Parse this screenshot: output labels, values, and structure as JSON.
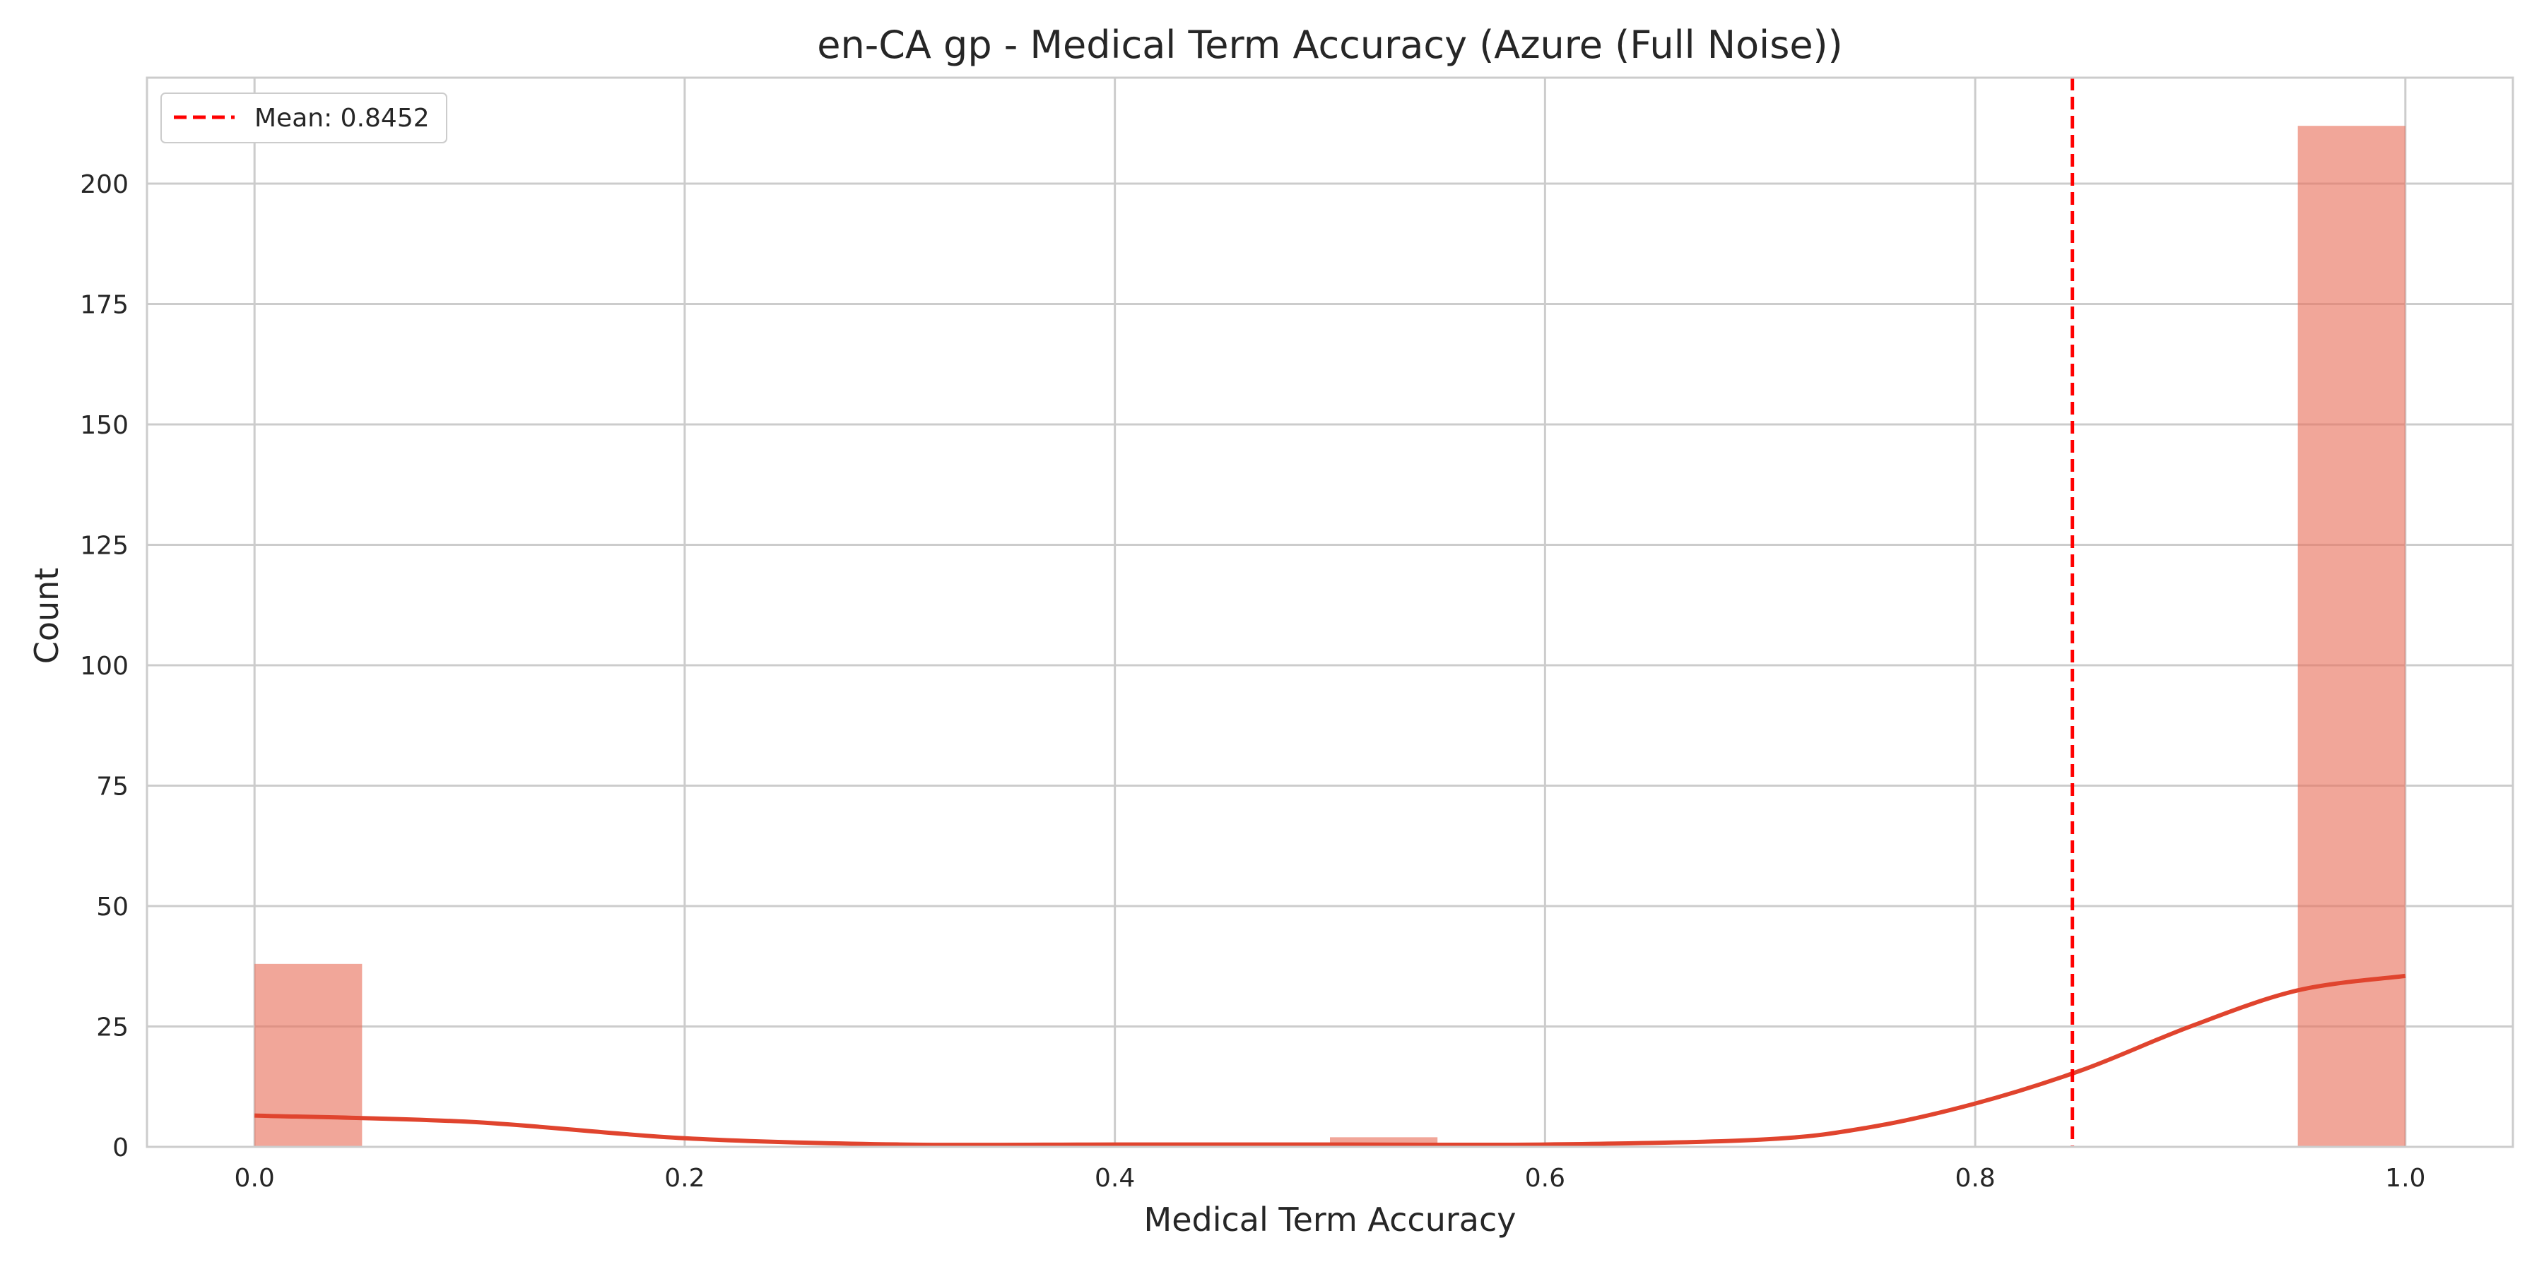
{
  "chart_data": {
    "type": "histogram",
    "title": "en-CA gp - Medical Term Accuracy (Azure (Full Noise))",
    "xlabel": "Medical Term Accuracy",
    "ylabel": "Count",
    "xlim": [
      -0.05,
      1.05
    ],
    "ylim": [
      0,
      222
    ],
    "xticks": [
      0.0,
      0.2,
      0.4,
      0.6,
      0.8,
      1.0
    ],
    "xtick_labels": [
      "0.0",
      "0.2",
      "0.4",
      "0.6",
      "0.8",
      "1.0"
    ],
    "yticks": [
      0,
      25,
      50,
      75,
      100,
      125,
      150,
      175,
      200
    ],
    "ytick_labels": [
      "0",
      "25",
      "50",
      "75",
      "100",
      "125",
      "150",
      "175",
      "200"
    ],
    "grid": true,
    "bar_color": "#e8705a",
    "bins": [
      {
        "x0": 0.0,
        "x1": 0.05,
        "count": 38
      },
      {
        "x0": 0.05,
        "x1": 0.1,
        "count": 0
      },
      {
        "x0": 0.1,
        "x1": 0.15,
        "count": 0
      },
      {
        "x0": 0.15,
        "x1": 0.2,
        "count": 0
      },
      {
        "x0": 0.2,
        "x1": 0.25,
        "count": 0
      },
      {
        "x0": 0.25,
        "x1": 0.3,
        "count": 0
      },
      {
        "x0": 0.3,
        "x1": 0.35,
        "count": 0
      },
      {
        "x0": 0.35,
        "x1": 0.4,
        "count": 0
      },
      {
        "x0": 0.4,
        "x1": 0.45,
        "count": 0
      },
      {
        "x0": 0.45,
        "x1": 0.5,
        "count": 0
      },
      {
        "x0": 0.5,
        "x1": 0.55,
        "count": 2
      },
      {
        "x0": 0.55,
        "x1": 0.6,
        "count": 0
      },
      {
        "x0": 0.6,
        "x1": 0.65,
        "count": 0
      },
      {
        "x0": 0.65,
        "x1": 0.7,
        "count": 0
      },
      {
        "x0": 0.7,
        "x1": 0.75,
        "count": 0
      },
      {
        "x0": 0.75,
        "x1": 0.8,
        "count": 0
      },
      {
        "x0": 0.8,
        "x1": 0.85,
        "count": 0
      },
      {
        "x0": 0.85,
        "x1": 0.9,
        "count": 0
      },
      {
        "x0": 0.9,
        "x1": 0.95,
        "count": 0
      },
      {
        "x0": 0.95,
        "x1": 1.0,
        "count": 212
      }
    ],
    "kde": {
      "color": "#e0442e",
      "x": [
        0.0,
        0.1,
        0.2,
        0.3,
        0.4,
        0.5,
        0.6,
        0.7,
        0.75,
        0.8,
        0.85,
        0.9,
        0.95,
        1.0
      ],
      "y": [
        6.5,
        5.2,
        1.8,
        0.5,
        0.5,
        0.5,
        0.5,
        1.5,
        4.0,
        9.0,
        16.0,
        25.0,
        32.5,
        35.5
      ]
    },
    "mean": {
      "value": 0.8452,
      "label": "Mean: 0.8452",
      "color": "#ff0000",
      "style": "dashed"
    },
    "legend": {
      "placement": "upper-left",
      "entries": [
        "Mean: 0.8452"
      ]
    }
  }
}
